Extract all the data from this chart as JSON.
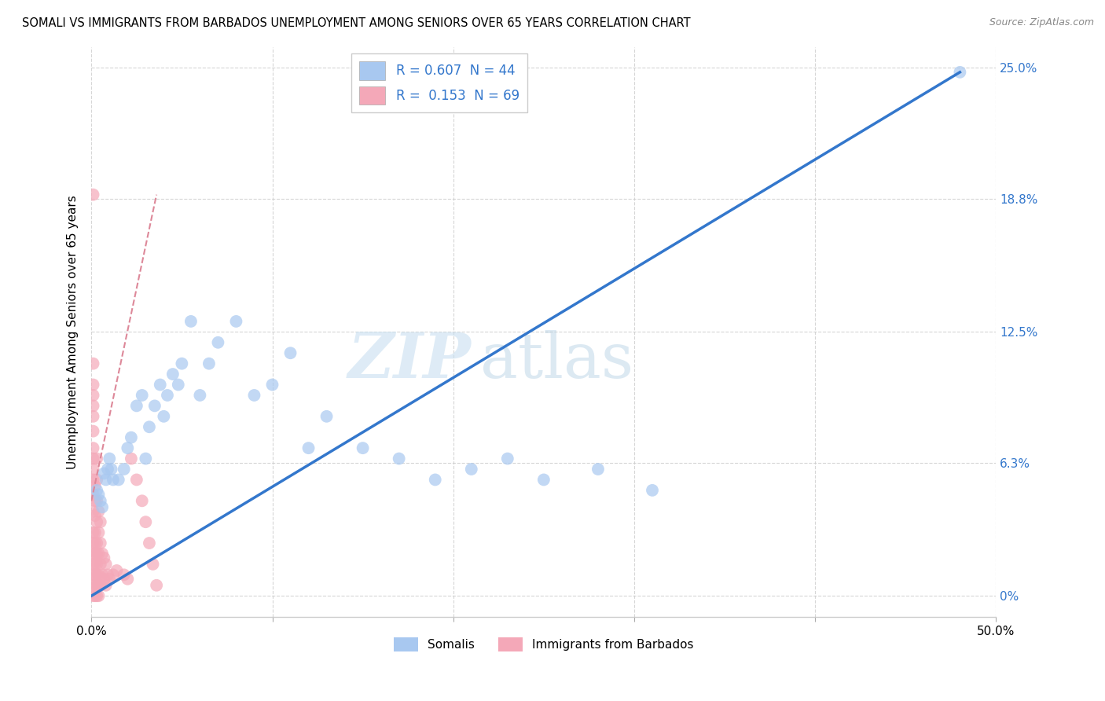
{
  "title": "SOMALI VS IMMIGRANTS FROM BARBADOS UNEMPLOYMENT AMONG SENIORS OVER 65 YEARS CORRELATION CHART",
  "source": "Source: ZipAtlas.com",
  "ylabel": "Unemployment Among Seniors over 65 years",
  "xlim": [
    0,
    0.5
  ],
  "ylim": [
    -0.01,
    0.26
  ],
  "ytick_labels_right": [
    "0%",
    "6.3%",
    "12.5%",
    "18.8%",
    "25.0%"
  ],
  "ytick_vals_right": [
    0,
    0.063,
    0.125,
    0.188,
    0.25
  ],
  "somali_color": "#a8c8f0",
  "barbados_color": "#f4a8b8",
  "somali_line_color": "#3377cc",
  "barbados_line_color": "#dd8899",
  "R_somali": 0.607,
  "N_somali": 44,
  "R_barbados": 0.153,
  "N_barbados": 69,
  "watermark_zip": "ZIP",
  "watermark_atlas": "atlas",
  "somali_x": [
    0.003,
    0.004,
    0.005,
    0.006,
    0.007,
    0.008,
    0.009,
    0.01,
    0.011,
    0.012,
    0.015,
    0.018,
    0.02,
    0.022,
    0.025,
    0.028,
    0.03,
    0.032,
    0.035,
    0.038,
    0.04,
    0.042,
    0.045,
    0.048,
    0.05,
    0.055,
    0.06,
    0.065,
    0.07,
    0.08,
    0.09,
    0.1,
    0.11,
    0.12,
    0.13,
    0.15,
    0.17,
    0.19,
    0.21,
    0.23,
    0.25,
    0.28,
    0.31,
    0.48
  ],
  "somali_y": [
    0.05,
    0.048,
    0.045,
    0.042,
    0.058,
    0.055,
    0.06,
    0.065,
    0.06,
    0.055,
    0.055,
    0.06,
    0.07,
    0.075,
    0.09,
    0.095,
    0.065,
    0.08,
    0.09,
    0.1,
    0.085,
    0.095,
    0.105,
    0.1,
    0.11,
    0.13,
    0.095,
    0.11,
    0.12,
    0.13,
    0.095,
    0.1,
    0.115,
    0.07,
    0.085,
    0.07,
    0.065,
    0.055,
    0.06,
    0.065,
    0.055,
    0.06,
    0.05,
    0.248
  ],
  "barbados_x": [
    0.001,
    0.001,
    0.001,
    0.001,
    0.001,
    0.001,
    0.001,
    0.001,
    0.001,
    0.001,
    0.001,
    0.001,
    0.001,
    0.001,
    0.001,
    0.001,
    0.001,
    0.001,
    0.001,
    0.001,
    0.002,
    0.002,
    0.002,
    0.002,
    0.002,
    0.002,
    0.002,
    0.002,
    0.002,
    0.002,
    0.003,
    0.003,
    0.003,
    0.003,
    0.003,
    0.003,
    0.003,
    0.003,
    0.003,
    0.003,
    0.004,
    0.004,
    0.004,
    0.004,
    0.004,
    0.004,
    0.005,
    0.005,
    0.005,
    0.005,
    0.006,
    0.006,
    0.007,
    0.007,
    0.008,
    0.008,
    0.009,
    0.01,
    0.012,
    0.014,
    0.018,
    0.02,
    0.022,
    0.025,
    0.028,
    0.03,
    0.032,
    0.034,
    0.036
  ],
  "barbados_y": [
    0.0,
    0.005,
    0.01,
    0.015,
    0.02,
    0.025,
    0.03,
    0.04,
    0.048,
    0.055,
    0.06,
    0.065,
    0.07,
    0.078,
    0.085,
    0.09,
    0.095,
    0.1,
    0.11,
    0.19,
    0.0,
    0.005,
    0.01,
    0.015,
    0.02,
    0.025,
    0.03,
    0.038,
    0.045,
    0.052,
    0.0,
    0.005,
    0.01,
    0.015,
    0.02,
    0.025,
    0.035,
    0.045,
    0.055,
    0.065,
    0.0,
    0.005,
    0.01,
    0.02,
    0.03,
    0.04,
    0.005,
    0.015,
    0.025,
    0.035,
    0.01,
    0.02,
    0.008,
    0.018,
    0.005,
    0.015,
    0.01,
    0.008,
    0.01,
    0.012,
    0.01,
    0.008,
    0.065,
    0.055,
    0.045,
    0.035,
    0.025,
    0.015,
    0.005
  ],
  "somali_line_x": [
    0.0,
    0.48
  ],
  "somali_line_y": [
    0.0,
    0.248
  ],
  "barbados_line_x": [
    0.0,
    0.036
  ],
  "barbados_line_y": [
    0.045,
    0.19
  ]
}
